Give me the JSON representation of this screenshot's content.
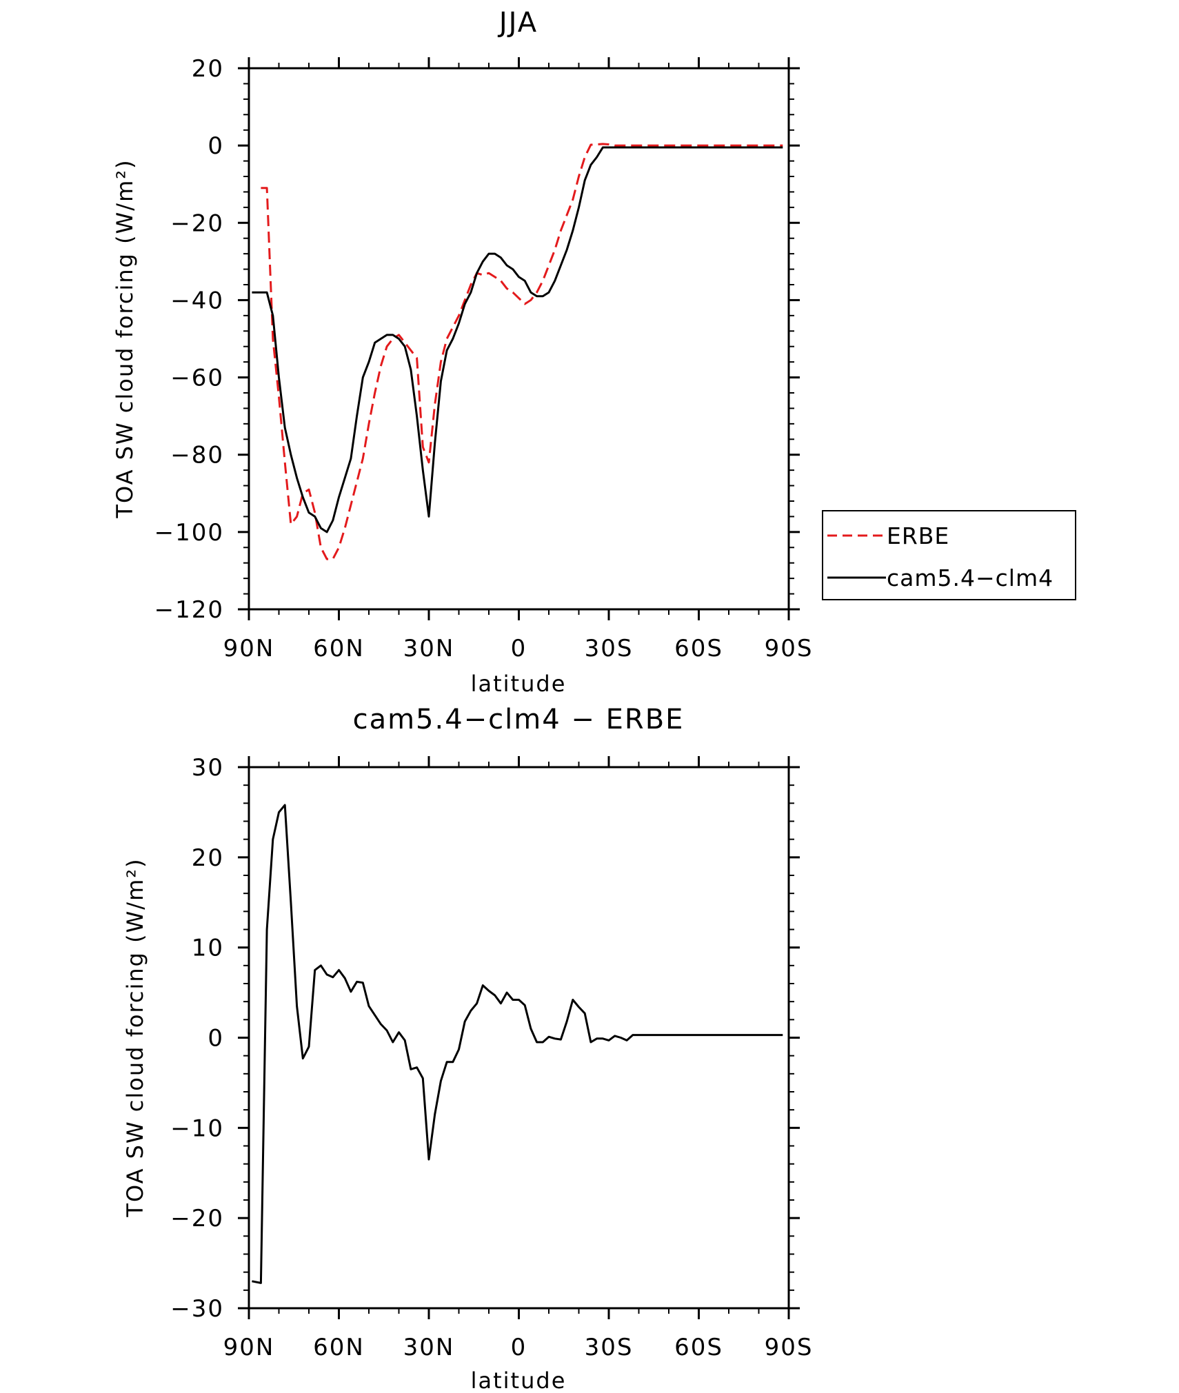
{
  "chart_data": [
    {
      "type": "line",
      "title": "JJA",
      "xlabel": "latitude",
      "ylabel": "TOA SW cloud forcing (W/m²)",
      "xlim": [
        90,
        -90
      ],
      "ylim": [
        -120,
        20
      ],
      "xticks": [
        {
          "value": 90,
          "label": "90N"
        },
        {
          "value": 60,
          "label": "60N"
        },
        {
          "value": 30,
          "label": "30N"
        },
        {
          "value": 0,
          "label": "0"
        },
        {
          "value": -30,
          "label": "30S"
        },
        {
          "value": -60,
          "label": "60S"
        },
        {
          "value": -90,
          "label": "90S"
        }
      ],
      "yticks": [
        {
          "value": 20,
          "label": "20"
        },
        {
          "value": 0,
          "label": "0"
        },
        {
          "value": -20,
          "label": "−20"
        },
        {
          "value": -40,
          "label": "−40"
        },
        {
          "value": -60,
          "label": "−60"
        },
        {
          "value": -80,
          "label": "−80"
        },
        {
          "value": -100,
          "label": "−100"
        },
        {
          "value": -120,
          "label": "−120"
        }
      ],
      "legend": {
        "placement": "right"
      },
      "series": [
        {
          "name": "ERBE",
          "color": "#e31a1c",
          "dash": true,
          "x": [
            86,
            84,
            82,
            80,
            78,
            76,
            74,
            72,
            70,
            68,
            66,
            64,
            62,
            60,
            58,
            56,
            54,
            52,
            50,
            48,
            46,
            44,
            42,
            40,
            38,
            36,
            34,
            32,
            30,
            28,
            26,
            24,
            22,
            20,
            18,
            16,
            14,
            12,
            10,
            8,
            6,
            4,
            2,
            0,
            -2,
            -4,
            -6,
            -8,
            -10,
            -12,
            -14,
            -16,
            -18,
            -20,
            -22,
            -24,
            -26,
            -28,
            -30,
            -32,
            -34,
            -36,
            -38,
            -40,
            -42,
            -44,
            -46,
            -48,
            -50,
            -52,
            -54,
            -56,
            -58,
            -60,
            -62,
            -64,
            -66,
            -68,
            -70,
            -72,
            -74,
            -76,
            -78,
            -80,
            -82,
            -84,
            -86,
            -88
          ],
          "y": [
            -11,
            -11,
            -50,
            -65,
            -82,
            -98,
            -96,
            -90,
            -89,
            -95,
            -104,
            -107,
            -107,
            -104,
            -99,
            -93,
            -87,
            -81,
            -72,
            -64,
            -57,
            -52,
            -50,
            -49,
            -51,
            -53,
            -55,
            -78,
            -82,
            -67,
            -56,
            -50,
            -47,
            -44,
            -40,
            -36,
            -33,
            -33.5,
            -33,
            -34,
            -35,
            -37,
            -38,
            -39.5,
            -41,
            -40,
            -38,
            -35,
            -31,
            -27,
            -22,
            -18,
            -14,
            -8,
            -3,
            0.2,
            0.3,
            0.4,
            0.3,
            0,
            0,
            0,
            0,
            0,
            0,
            0,
            0,
            0,
            0,
            0,
            0,
            0,
            0,
            0,
            0,
            0,
            0,
            0,
            0,
            0,
            0,
            0,
            0,
            0,
            0,
            0,
            0,
            0
          ]
        },
        {
          "name": "cam5.4−clm4",
          "color": "#000000",
          "dash": false,
          "x": [
            89,
            86,
            84,
            82,
            80,
            78,
            76,
            74,
            72,
            70,
            68,
            66,
            64,
            62,
            60,
            58,
            56,
            54,
            52,
            50,
            48,
            46,
            44,
            42,
            40,
            38,
            36,
            34,
            32,
            30,
            28,
            26,
            24,
            22,
            20,
            18,
            16,
            14,
            12,
            10,
            8,
            6,
            4,
            2,
            0,
            -2,
            -4,
            -6,
            -8,
            -10,
            -12,
            -14,
            -16,
            -18,
            -20,
            -22,
            -24,
            -26,
            -28,
            -30,
            -32,
            -34,
            -36,
            -38,
            -40,
            -42,
            -44,
            -46,
            -48,
            -50,
            -52,
            -54,
            -56,
            -58,
            -60,
            -62,
            -64,
            -66,
            -68,
            -70,
            -72,
            -74,
            -76,
            -78,
            -80,
            -82,
            -84,
            -86,
            -88
          ],
          "y": [
            -38,
            -38,
            -38,
            -44,
            -60,
            -73,
            -80,
            -86,
            -91,
            -95,
            -96,
            -99,
            -100,
            -97,
            -91,
            -86,
            -81,
            -70,
            -60,
            -56,
            -51,
            -50,
            -49,
            -49,
            -50,
            -52,
            -58,
            -70,
            -84,
            -96,
            -77,
            -61,
            -53,
            -50,
            -46,
            -41,
            -38,
            -33,
            -30,
            -28,
            -28,
            -29,
            -31,
            -32,
            -34,
            -35,
            -38,
            -39,
            -39,
            -38,
            -35,
            -31,
            -27,
            -22,
            -16,
            -9,
            -5,
            -3,
            -0.5,
            -0.5,
            -0.5,
            -0.5,
            -0.5,
            -0.5,
            -0.5,
            -0.5,
            -0.5,
            -0.5,
            -0.5,
            -0.5,
            -0.5,
            -0.5,
            -0.5,
            -0.5,
            -0.5,
            -0.5,
            -0.5,
            -0.5,
            -0.5,
            -0.5,
            -0.5,
            -0.5,
            -0.5,
            -0.5,
            -0.5,
            -0.5,
            -0.5,
            -0.5,
            -0.5
          ]
        }
      ]
    },
    {
      "type": "line",
      "title": "cam5.4−clm4 − ERBE",
      "xlabel": "latitude",
      "ylabel": "TOA SW cloud forcing (W/m²)",
      "xlim": [
        90,
        -90
      ],
      "ylim": [
        -30,
        30
      ],
      "xticks": [
        {
          "value": 90,
          "label": "90N"
        },
        {
          "value": 60,
          "label": "60N"
        },
        {
          "value": 30,
          "label": "30N"
        },
        {
          "value": 0,
          "label": "0"
        },
        {
          "value": -30,
          "label": "30S"
        },
        {
          "value": -60,
          "label": "60S"
        },
        {
          "value": -90,
          "label": "90S"
        }
      ],
      "yticks": [
        {
          "value": 30,
          "label": "30"
        },
        {
          "value": 20,
          "label": "20"
        },
        {
          "value": 10,
          "label": "10"
        },
        {
          "value": 0,
          "label": "0"
        },
        {
          "value": -10,
          "label": "−10"
        },
        {
          "value": -20,
          "label": "−20"
        },
        {
          "value": -30,
          "label": "−30"
        }
      ],
      "series": [
        {
          "color": "#000000",
          "dash": false,
          "x": [
            89,
            86,
            84,
            82,
            80,
            78,
            76,
            74,
            72,
            70,
            68,
            66,
            64,
            62,
            60,
            58,
            56,
            54,
            52,
            50,
            48,
            46,
            44,
            42,
            40,
            38,
            36,
            34,
            32,
            30,
            28,
            26,
            24,
            22,
            20,
            18,
            16,
            14,
            12,
            10,
            8,
            6,
            4,
            2,
            0,
            -2,
            -4,
            -6,
            -8,
            -10,
            -12,
            -14,
            -16,
            -18,
            -20,
            -22,
            -24,
            -26,
            -28,
            -30,
            -32,
            -34,
            -36,
            -38,
            -40,
            -42,
            -44,
            -46,
            -48,
            -50,
            -52,
            -54,
            -56,
            -58,
            -60,
            -62,
            -64,
            -66,
            -68,
            -70,
            -72,
            -74,
            -76,
            -78,
            -80,
            -82,
            -84,
            -86,
            -88
          ],
          "y": [
            -27,
            -27.2,
            12,
            22,
            25,
            25.8,
            15,
            3.5,
            -2.3,
            -1,
            7.5,
            8,
            7,
            6.7,
            7.5,
            6.6,
            5.1,
            6.2,
            6.1,
            3.5,
            2.5,
            1.5,
            0.8,
            -0.5,
            0.6,
            -0.3,
            -3.5,
            -3.3,
            -4.5,
            -13.5,
            -8.5,
            -4.8,
            -2.7,
            -2.7,
            -1.3,
            1.8,
            3,
            3.8,
            5.8,
            5.2,
            4.7,
            3.8,
            5,
            4.2,
            4.2,
            3.6,
            1,
            -0.5,
            -0.5,
            0.1,
            -0.1,
            -0.2,
            1.8,
            4.2,
            3.4,
            2.7,
            -0.5,
            -0.1,
            -0.1,
            -0.3,
            0.2,
            0,
            -0.3,
            0.3,
            0.3,
            0.3,
            0.3,
            0.3,
            0.3,
            0.3,
            0.3,
            0.3,
            0.3,
            0.3,
            0.3,
            0.3,
            0.3,
            0.3,
            0.3,
            0.3,
            0.3,
            0.3,
            0.3,
            0.3,
            0.3,
            0.3,
            0.3,
            0.3,
            0.3
          ]
        }
      ]
    }
  ]
}
